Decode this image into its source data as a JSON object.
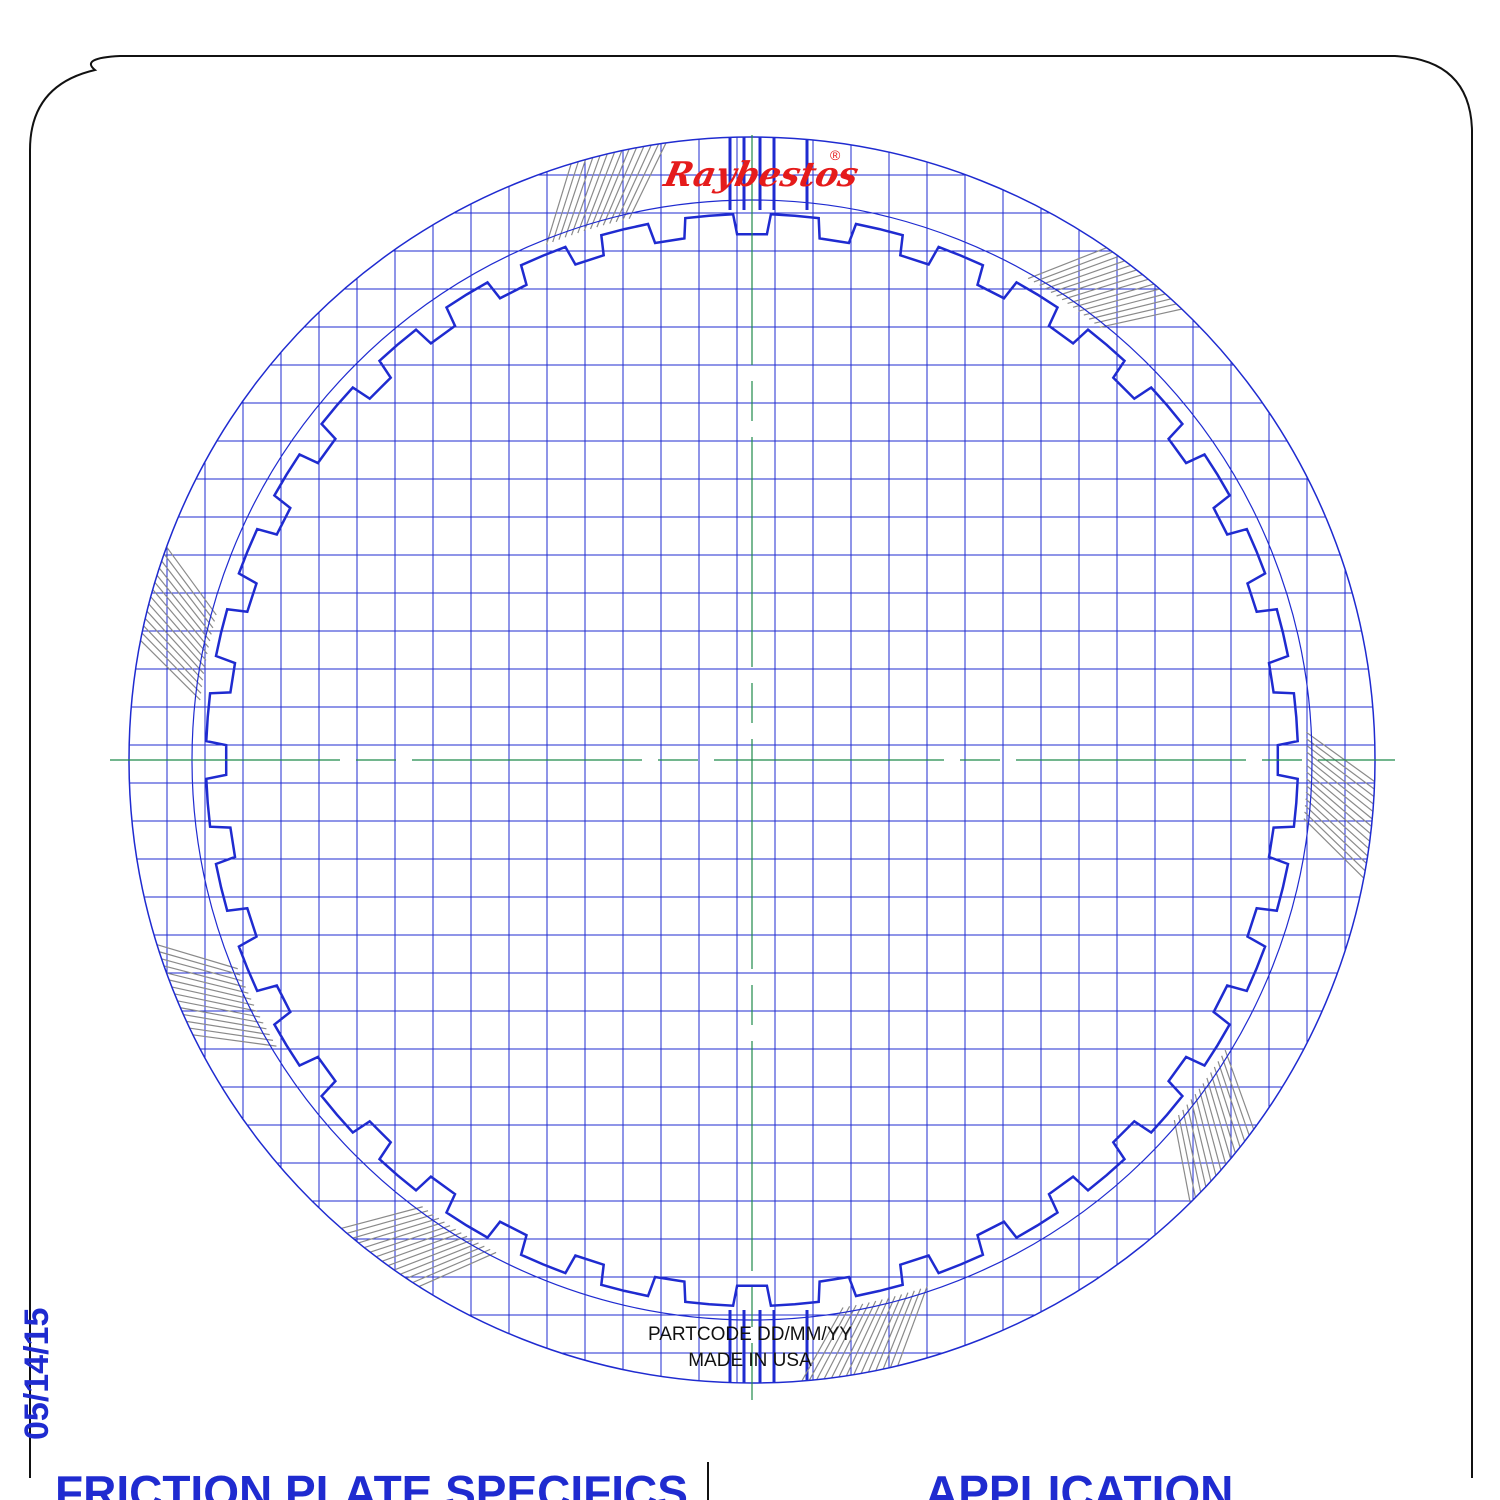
{
  "drawing": {
    "date_stamp": "05/14/15",
    "logo": "Raybestos",
    "registered_mark": "®",
    "stamp_line_1": "PARTCODE DD/MM/YY",
    "stamp_line_2": "MADE IN USA",
    "bottom_left_title": "FRICTION PLATE SPECIFICS",
    "bottom_right_title": "APPLICATION"
  },
  "plate": {
    "tooth_count": 40,
    "colors": {
      "outline": "#1f2bd0",
      "groove": "#1f2bd0",
      "hatch": "#8a8a8a",
      "centerline": "#1e8a4a",
      "logo": "#e51b1b",
      "frame": "#111111"
    }
  }
}
